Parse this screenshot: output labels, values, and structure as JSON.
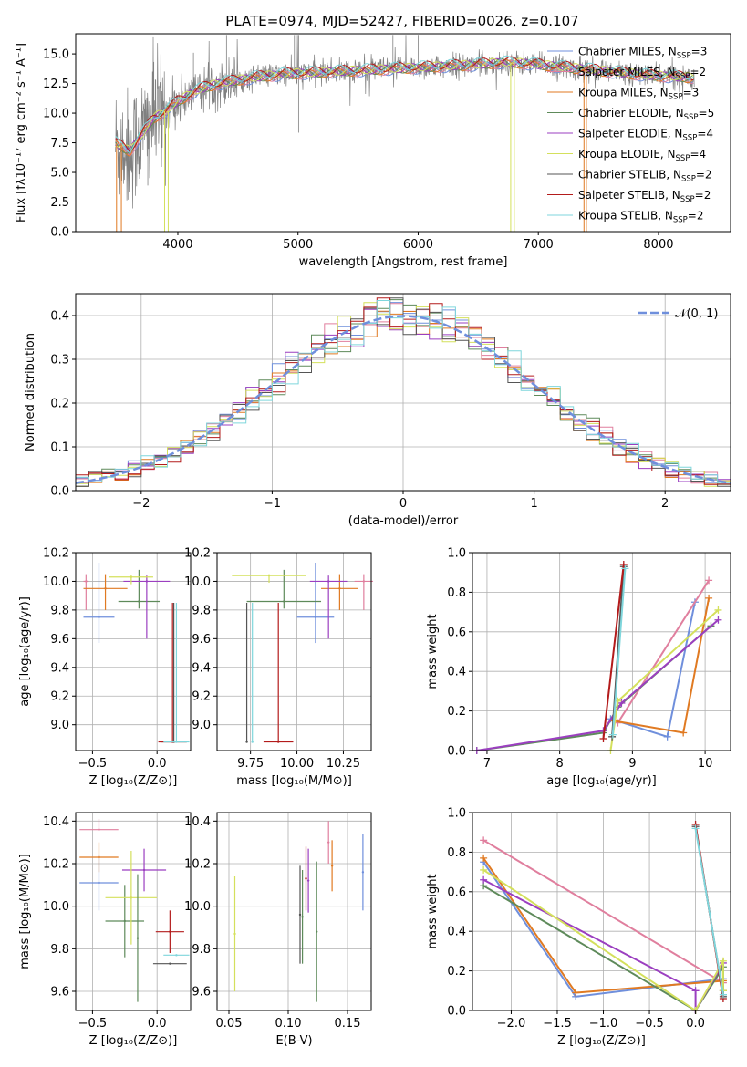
{
  "chart_data": [
    {
      "id": "spectrum",
      "type": "line",
      "title": "PLATE=0974, MJD=52427, FIBERID=0026, z=0.107",
      "xlabel": "wavelength [Angstrom, rest frame]",
      "ylabel": "Flux [fλ10⁻¹⁷ erg cm⁻² s⁻¹ A⁻¹]",
      "xlim": [
        3150,
        8600
      ],
      "ylim": [
        0,
        16.7
      ],
      "xticks": [
        4000,
        5000,
        6000,
        7000,
        8000
      ],
      "yticks": [
        0.0,
        2.5,
        5.0,
        7.5,
        10.0,
        12.5,
        15.0
      ],
      "grid": false,
      "legend_position": "right",
      "series": [
        {
          "name": "Chabrier MILES, N_SSP=3",
          "color": "#6f8fdc"
        },
        {
          "name": "Salpeter MILES, N_SSP=2",
          "color": "#e07f9e"
        },
        {
          "name": "Kroupa MILES, N_SSP=3",
          "color": "#e07a22"
        },
        {
          "name": "Chabrier ELODIE, N_SSP=5",
          "color": "#5e8a5a"
        },
        {
          "name": "Salpeter ELODIE, N_SSP=4",
          "color": "#9b3fc0"
        },
        {
          "name": "Kroupa ELODIE, N_SSP=4",
          "color": "#d4e05c"
        },
        {
          "name": "Chabrier STELIB, N_SSP=2",
          "color": "#555555"
        },
        {
          "name": "Salpeter STELIB, N_SSP=2",
          "color": "#b31b1b"
        },
        {
          "name": "Kroupa STELIB, N_SSP=2",
          "color": "#7fd6dc"
        }
      ],
      "data_series_color": "#808080",
      "model_shape": {
        "x": [
          3480,
          3600,
          3700,
          3800,
          3900,
          4000,
          4100,
          4200,
          4300,
          4400,
          4500,
          4700,
          4900,
          5100,
          5300,
          5500,
          5700,
          5900,
          6100,
          6300,
          6500,
          6700,
          6900,
          7100,
          7300,
          7500,
          7700,
          7900,
          8100,
          8300
        ],
        "y": [
          7.5,
          6.8,
          8.2,
          9.6,
          10.2,
          11.0,
          11.6,
          12.1,
          12.4,
          12.6,
          12.8,
          13.1,
          13.3,
          13.4,
          13.5,
          13.6,
          13.7,
          13.8,
          13.9,
          14.0,
          14.1,
          14.3,
          14.2,
          14.0,
          13.8,
          13.6,
          13.4,
          13.2,
          13.1,
          13.0
        ]
      },
      "model_drops": [
        {
          "x_from": 3490,
          "x_to": 3530,
          "color": "#e07a22"
        },
        {
          "x_from": 3890,
          "x_to": 3920,
          "color": "#d4e05c"
        },
        {
          "x_from": 6770,
          "x_to": 6800,
          "color": "#d4e05c"
        },
        {
          "x_from": 7380,
          "x_to": 7400,
          "color": "#e07a22"
        }
      ]
    },
    {
      "id": "residuals",
      "type": "histogram",
      "xlabel": "(data-model)/error",
      "ylabel": "Normed distribution",
      "xlim": [
        -2.5,
        2.5
      ],
      "ylim": [
        0,
        0.45
      ],
      "xticks": [
        -2,
        -1,
        0,
        1,
        2
      ],
      "yticks": [
        0.0,
        0.1,
        0.2,
        0.3,
        0.4
      ],
      "grid": true,
      "legend_position": "top-right",
      "reference_label": "𝒩(0, 1)",
      "reference_color": "#6f8fdc",
      "bin_width": 0.1
    },
    {
      "id": "age-vs-Z",
      "type": "errorbar",
      "xlabel": "Z [log₁₀(Z/Z⊙)]",
      "ylabel": "age  [log₁₀(age/yr)]",
      "xlim": [
        -0.63,
        0.26
      ],
      "ylim": [
        8.82,
        10.2
      ],
      "xticks": [
        -0.5,
        0.0
      ],
      "yticks": [
        9.0,
        9.2,
        9.4,
        9.6,
        9.8,
        10.0,
        10.2
      ],
      "grid": true,
      "points": [
        {
          "color": "#6f8fdc",
          "x": -0.45,
          "xerr": 0.12,
          "y": 9.75,
          "yerr": [
            0.18,
            0.38
          ]
        },
        {
          "color": "#e07f9e",
          "x": -0.55,
          "xerr": 0.02,
          "y": 10.0,
          "yerr": [
            0.2,
            0.05
          ]
        },
        {
          "color": "#e07a22",
          "x": -0.4,
          "xerr": 0.17,
          "y": 9.95,
          "yerr": [
            0.15,
            0.1
          ]
        },
        {
          "color": "#5e8a5a",
          "x": -0.14,
          "xerr": 0.16,
          "y": 9.86,
          "yerr": [
            0.05,
            0.22
          ]
        },
        {
          "color": "#9b3fc0",
          "x": -0.08,
          "xerr": 0.18,
          "y": 10.0,
          "yerr": [
            0.4,
            0.04
          ]
        },
        {
          "color": "#d4e05c",
          "x": -0.2,
          "xerr": 0.17,
          "y": 10.03,
          "yerr": [
            0.05,
            0.01
          ]
        },
        {
          "color": "#555555",
          "x": 0.13,
          "xerr": 0.1,
          "y": 8.88,
          "yerr": [
            0.0,
            0.97
          ]
        },
        {
          "color": "#b31b1b",
          "x": 0.12,
          "xerr": 0.11,
          "y": 8.88,
          "yerr": [
            0.0,
            0.97
          ]
        },
        {
          "color": "#7fd6dc",
          "x": 0.15,
          "xerr": 0.1,
          "y": 8.88,
          "yerr": [
            0.0,
            0.97
          ]
        }
      ]
    },
    {
      "id": "age-vs-mass",
      "type": "errorbar",
      "xlabel": "mass [log₁₀(M/M⊙)]",
      "ylabel": "",
      "xlim": [
        9.57,
        10.4
      ],
      "ylim": [
        8.82,
        10.2
      ],
      "xticks": [
        9.75,
        10.0,
        10.25
      ],
      "xtick_labels": [
        "9.75",
        "10.00",
        "10.25"
      ],
      "yticks": [
        9.0,
        9.2,
        9.4,
        9.6,
        9.8,
        10.0,
        10.2
      ],
      "grid": true,
      "points": [
        {
          "color": "#6f8fdc",
          "x": 10.1,
          "xerr": 0.1,
          "y": 9.75,
          "yerr": [
            0.18,
            0.38
          ]
        },
        {
          "color": "#e07f9e",
          "x": 10.36,
          "xerr": 0.05,
          "y": 10.0,
          "yerr": [
            0.2,
            0.05
          ]
        },
        {
          "color": "#e07a22",
          "x": 10.23,
          "xerr": 0.1,
          "y": 9.95,
          "yerr": [
            0.15,
            0.1
          ]
        },
        {
          "color": "#5e8a5a",
          "x": 9.93,
          "xerr": 0.2,
          "y": 9.86,
          "yerr": [
            0.05,
            0.22
          ]
        },
        {
          "color": "#9b3fc0",
          "x": 10.17,
          "xerr": 0.1,
          "y": 10.0,
          "yerr": [
            0.4,
            0.04
          ]
        },
        {
          "color": "#d4e05c",
          "x": 9.85,
          "xerr": 0.2,
          "y": 10.04,
          "yerr": [
            0.05,
            0.01
          ]
        },
        {
          "color": "#555555",
          "x": 9.73,
          "xerr": 0.0,
          "y": 8.88,
          "yerr": [
            0.0,
            0.97
          ]
        },
        {
          "color": "#b31b1b",
          "x": 9.9,
          "xerr": 0.08,
          "y": 8.88,
          "yerr": [
            0.0,
            0.97
          ]
        },
        {
          "color": "#7fd6dc",
          "x": 9.76,
          "xerr": 0.0,
          "y": 8.88,
          "yerr": [
            0.0,
            0.97
          ]
        }
      ]
    },
    {
      "id": "weight-vs-age",
      "type": "line",
      "xlabel": "age  [log₁₀(age/yr)]",
      "ylabel": "mass weight",
      "xlim": [
        6.8,
        10.35
      ],
      "ylim": [
        0,
        1.0
      ],
      "xticks": [
        7,
        8,
        9,
        10
      ],
      "yticks": [
        0.0,
        0.2,
        0.4,
        0.6,
        0.8,
        1.0
      ],
      "grid": true,
      "series": [
        {
          "color": "#6f8fdc",
          "x": [
            8.7,
            9.48,
            9.86
          ],
          "y": [
            0.16,
            0.07,
            0.75
          ]
        },
        {
          "color": "#e07f9e",
          "x": [
            8.8,
            10.05
          ],
          "y": [
            0.14,
            0.86
          ]
        },
        {
          "color": "#e07a22",
          "x": [
            8.75,
            9.7,
            10.05
          ],
          "y": [
            0.15,
            0.09,
            0.77
          ]
        },
        {
          "color": "#5e8a5a",
          "x": [
            6.86,
            8.6,
            8.8,
            10.08
          ],
          "y": [
            0.0,
            0.09,
            0.22,
            0.63
          ]
        },
        {
          "color": "#9b3fc0",
          "x": [
            6.86,
            8.6,
            8.85,
            10.18
          ],
          "y": [
            0.0,
            0.1,
            0.24,
            0.66
          ]
        },
        {
          "color": "#d4e05c",
          "x": [
            8.7,
            8.8,
            10.18
          ],
          "y": [
            0.0,
            0.25,
            0.71
          ]
        },
        {
          "color": "#555555",
          "x": [
            8.72,
            8.88
          ],
          "y": [
            0.07,
            0.93
          ]
        },
        {
          "color": "#b31b1b",
          "x": [
            8.6,
            8.88
          ],
          "y": [
            0.06,
            0.94
          ]
        },
        {
          "color": "#7fd6dc",
          "x": [
            8.73,
            8.9
          ],
          "y": [
            0.08,
            0.92
          ]
        }
      ]
    },
    {
      "id": "mass-vs-Z",
      "type": "errorbar",
      "xlabel": "Z [log₁₀(Z/Z⊙)]",
      "ylabel": "mass [log₁₀(M/M⊙)]",
      "xlim": [
        -0.63,
        0.26
      ],
      "ylim": [
        9.51,
        10.44
      ],
      "xticks": [
        -0.5,
        0.0
      ],
      "yticks": [
        9.6,
        9.8,
        10.0,
        10.2,
        10.4
      ],
      "grid": true,
      "points": [
        {
          "color": "#6f8fdc",
          "x": -0.45,
          "xerr": 0.15,
          "y": 10.11,
          "yerr": [
            0.13,
            0.13
          ]
        },
        {
          "color": "#e07f9e",
          "x": -0.45,
          "xerr": 0.15,
          "y": 10.36,
          "yerr": [
            0.0,
            0.05
          ]
        },
        {
          "color": "#e07a22",
          "x": -0.45,
          "xerr": 0.15,
          "y": 10.23,
          "yerr": [
            0.07,
            0.07
          ]
        },
        {
          "color": "#5e8a5a",
          "x": -0.25,
          "xerr": 0.15,
          "y": 9.93,
          "yerr": [
            0.17,
            0.17
          ]
        },
        {
          "color": "#9b3fc0",
          "x": -0.1,
          "xerr": 0.17,
          "y": 10.17,
          "yerr": [
            0.1,
            0.1
          ]
        },
        {
          "color": "#d4e05c",
          "x": -0.2,
          "xerr": 0.2,
          "y": 10.04,
          "yerr": [
            0.22,
            0.22
          ]
        },
        {
          "color": "#555555",
          "x": 0.1,
          "xerr": 0.13,
          "y": 9.73,
          "yerr": [
            0.0,
            0.0
          ]
        },
        {
          "color": "#b31b1b",
          "x": 0.1,
          "xerr": 0.11,
          "y": 9.88,
          "yerr": [
            0.1,
            0.1
          ]
        },
        {
          "color": "#7fd6dc",
          "x": 0.15,
          "xerr": 0.1,
          "y": 9.77,
          "yerr": [
            0.0,
            0.0
          ]
        },
        {
          "color": "#5e8a5a",
          "x": -0.15,
          "xerr": 0.0,
          "y": 9.85,
          "yerr": [
            0.3,
            0.3
          ]
        }
      ]
    },
    {
      "id": "mass-vs-EBV",
      "type": "errorbar",
      "xlabel": "E(B-V)",
      "ylabel": "",
      "xlim": [
        0.04,
        0.17
      ],
      "ylim": [
        9.51,
        10.44
      ],
      "xticks": [
        0.05,
        0.1,
        0.15
      ],
      "xtick_labels": [
        "0.05",
        "0.10",
        "0.15"
      ],
      "yticks": [
        9.6,
        9.8,
        10.0,
        10.2,
        10.4
      ],
      "grid": true,
      "points": [
        {
          "color": "#d4e05c",
          "x": 0.055,
          "y": 9.87,
          "yerr": [
            0.27,
            0.27
          ]
        },
        {
          "color": "#555555",
          "x": 0.11,
          "y": 9.96,
          "yerr": [
            0.23,
            0.23
          ]
        },
        {
          "color": "#5e8a5a",
          "x": 0.112,
          "y": 9.95,
          "yerr": [
            0.22,
            0.22
          ]
        },
        {
          "color": "#b31b1b",
          "x": 0.115,
          "y": 10.13,
          "yerr": [
            0.15,
            0.15
          ]
        },
        {
          "color": "#9b3fc0",
          "x": 0.117,
          "y": 10.12,
          "yerr": [
            0.15,
            0.15
          ]
        },
        {
          "color": "#5e8a5a",
          "x": 0.124,
          "y": 9.88,
          "yerr": [
            0.33,
            0.33
          ]
        },
        {
          "color": "#e07f9e",
          "x": 0.134,
          "y": 10.3,
          "yerr": [
            0.1,
            0.1
          ]
        },
        {
          "color": "#e07a22",
          "x": 0.137,
          "y": 10.19,
          "yerr": [
            0.12,
            0.12
          ]
        },
        {
          "color": "#6f8fdc",
          "x": 0.163,
          "y": 10.16,
          "yerr": [
            0.18,
            0.18
          ]
        }
      ]
    },
    {
      "id": "weight-vs-Z",
      "type": "line",
      "xlabel": "Z [log₁₀(Z/Z⊙)]",
      "ylabel": "mass weight",
      "xlim": [
        -2.42,
        0.38
      ],
      "ylim": [
        0,
        1.0
      ],
      "xticks": [
        -2.0,
        -1.5,
        -1.0,
        -0.5,
        0.0
      ],
      "yticks": [
        0.0,
        0.2,
        0.4,
        0.6,
        0.8,
        1.0
      ],
      "grid": true,
      "series": [
        {
          "color": "#6f8fdc",
          "x": [
            -2.3,
            -1.3,
            0.3,
            0.3
          ],
          "y": [
            0.75,
            0.07,
            0.16,
            0.1
          ]
        },
        {
          "color": "#e07f9e",
          "x": [
            -2.3,
            0.3
          ],
          "y": [
            0.86,
            0.14
          ]
        },
        {
          "color": "#e07a22",
          "x": [
            -2.3,
            -1.3,
            0.3,
            0.3
          ],
          "y": [
            0.77,
            0.09,
            0.15,
            0.1
          ]
        },
        {
          "color": "#5e8a5a",
          "x": [
            -2.3,
            0.0,
            0.3,
            0.3
          ],
          "y": [
            0.63,
            0.0,
            0.22,
            0.08
          ]
        },
        {
          "color": "#9b3fc0",
          "x": [
            -2.3,
            0.0,
            0.0,
            0.3
          ],
          "y": [
            0.66,
            0.1,
            0.0,
            0.24
          ]
        },
        {
          "color": "#d4e05c",
          "x": [
            -2.3,
            0.0,
            0.3,
            0.3
          ],
          "y": [
            0.71,
            0.0,
            0.25,
            0.1
          ]
        },
        {
          "color": "#555555",
          "x": [
            0.0,
            0.3
          ],
          "y": [
            0.93,
            0.07
          ]
        },
        {
          "color": "#b31b1b",
          "x": [
            0.0,
            0.3
          ],
          "y": [
            0.94,
            0.06
          ]
        },
        {
          "color": "#7fd6dc",
          "x": [
            0.0,
            0.3
          ],
          "y": [
            0.92,
            0.08
          ]
        }
      ]
    }
  ]
}
